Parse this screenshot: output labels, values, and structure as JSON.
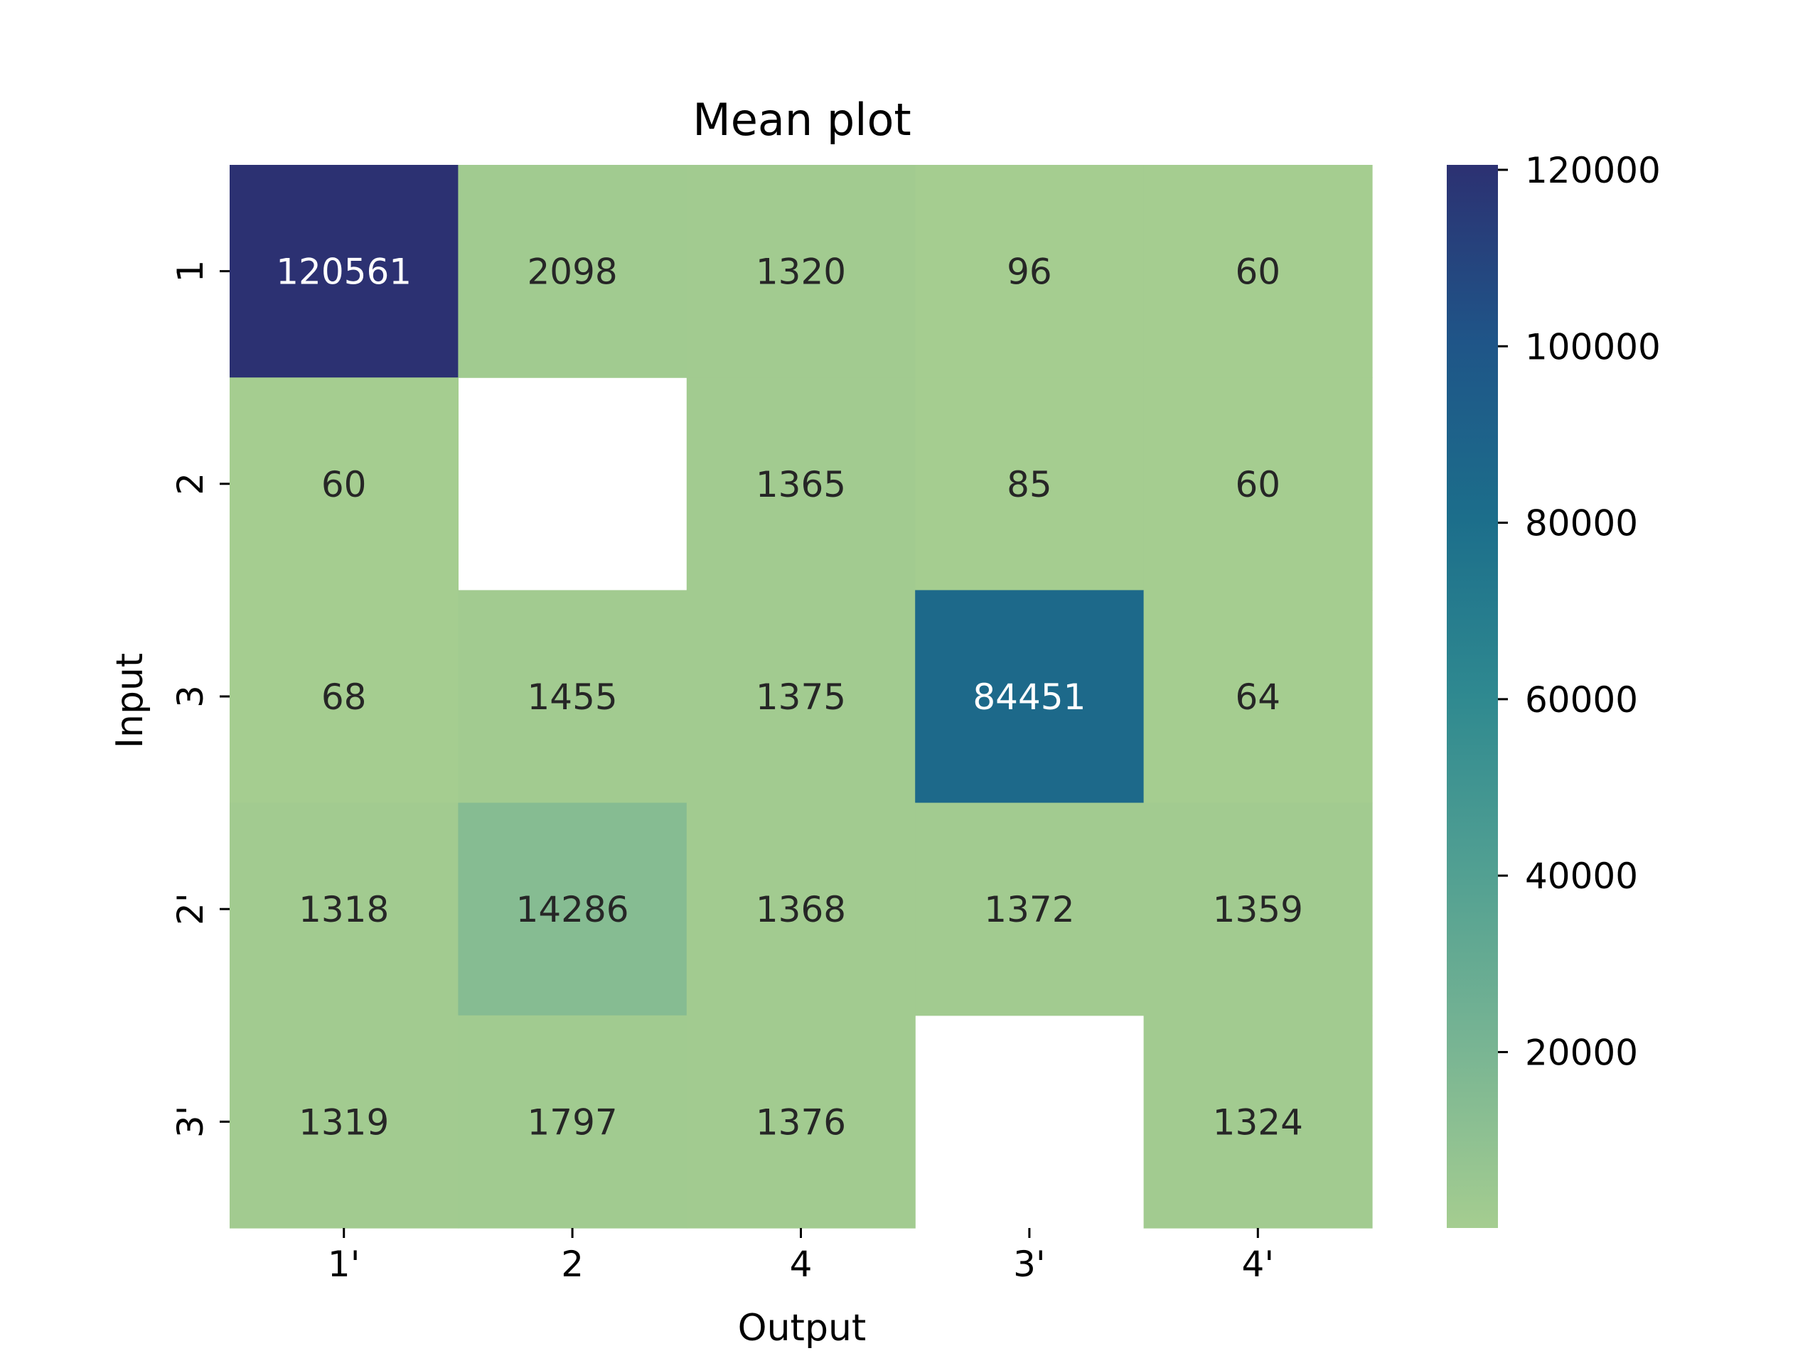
{
  "chart_data": {
    "type": "heatmap",
    "title": "Mean plot",
    "xlabel": "Output",
    "ylabel": "Input",
    "x_categories": [
      "1'",
      "2",
      "4",
      "3'",
      "4'"
    ],
    "y_categories": [
      "1",
      "2",
      "3",
      "2'",
      "3'"
    ],
    "values": [
      [
        120561,
        2098,
        1320,
        96,
        60
      ],
      [
        60,
        null,
        1365,
        85,
        60
      ],
      [
        68,
        1455,
        1375,
        84451,
        64
      ],
      [
        1318,
        14286,
        1368,
        1372,
        1359
      ],
      [
        1319,
        1797,
        1376,
        null,
        1324
      ]
    ],
    "colorbar": {
      "vmin": 60,
      "vmax": 120561,
      "ticks": [
        20000,
        40000,
        60000,
        80000,
        100000,
        120000
      ],
      "tick_labels": [
        "20000",
        "40000",
        "60000",
        "80000",
        "100000",
        "120000"
      ],
      "colormap": "crest",
      "colors": [
        "#a5cd90",
        "#79b593",
        "#52a092",
        "#2f8990",
        "#1c6e8b",
        "#1f5588",
        "#2c3172"
      ]
    },
    "annotation_colors": {
      "dark": "#262626",
      "light": "#ffffff"
    }
  }
}
